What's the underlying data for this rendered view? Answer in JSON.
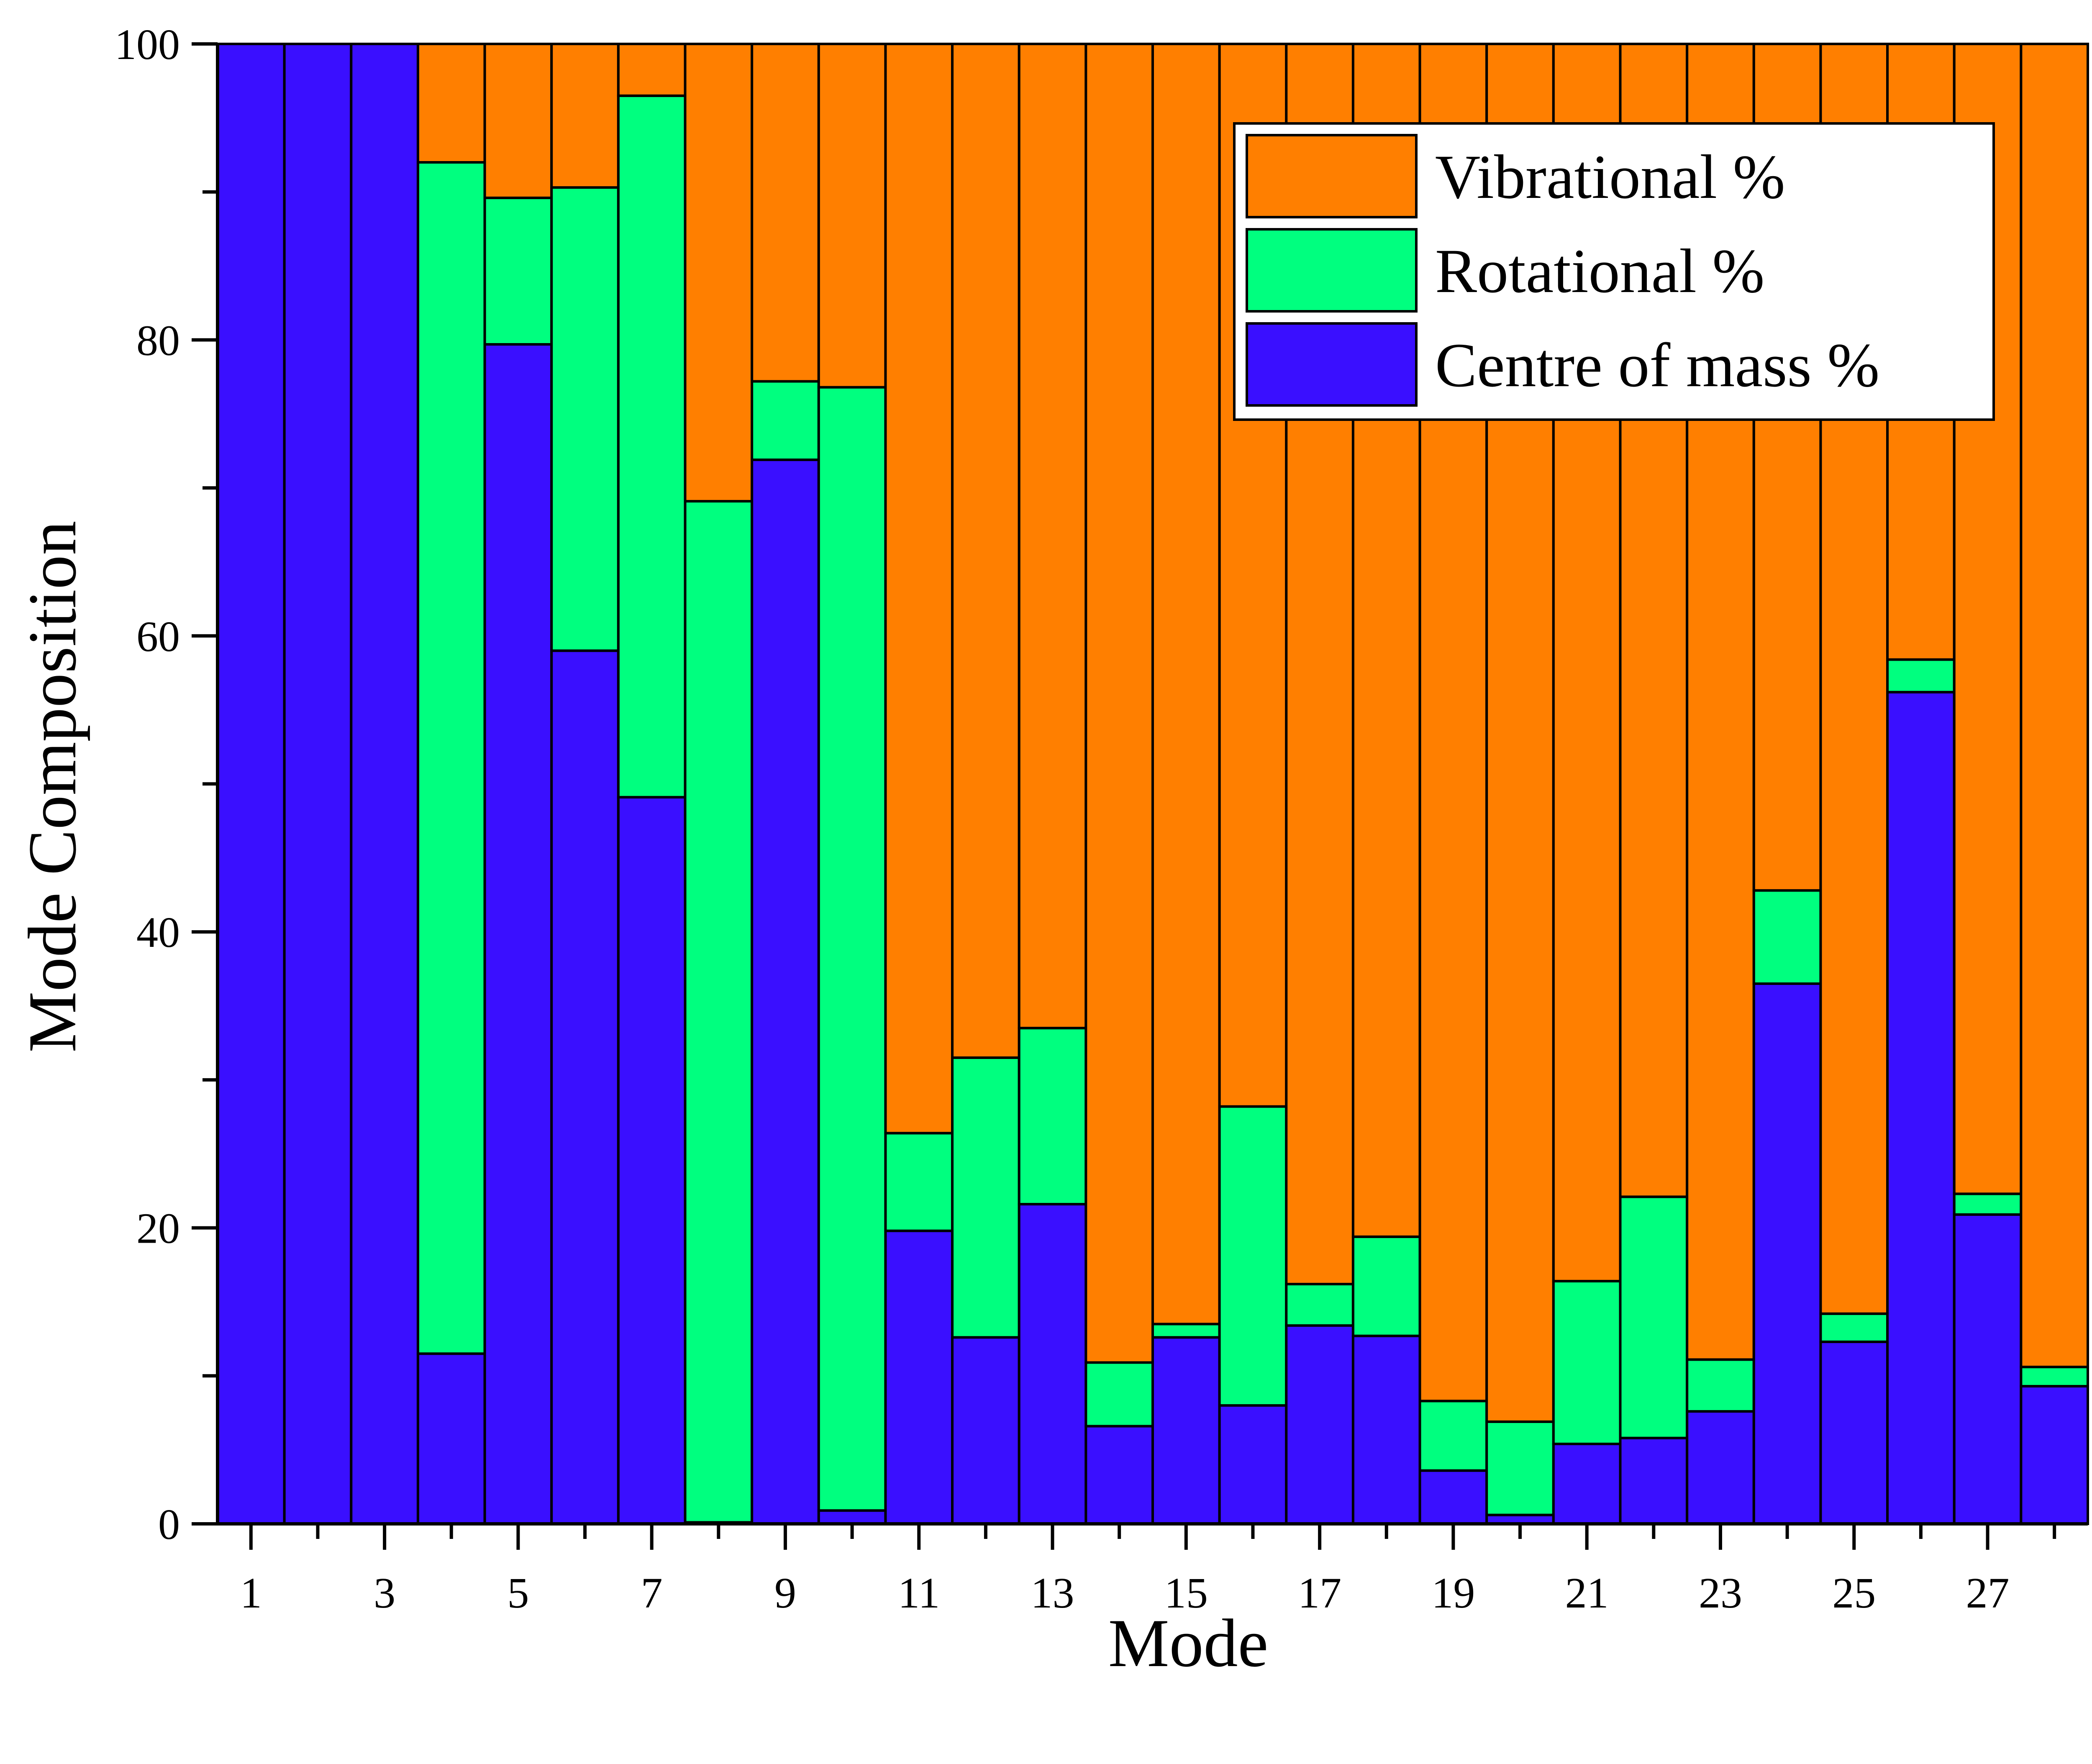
{
  "chart_data": {
    "type": "bar",
    "stacked": true,
    "xlabel": "Mode",
    "ylabel": "Mode Composition",
    "ylim": [
      0,
      100
    ],
    "y_ticks": [
      0,
      20,
      40,
      60,
      80,
      100
    ],
    "x_tick_labels": [
      "1",
      "3",
      "5",
      "7",
      "9",
      "11",
      "13",
      "15",
      "17",
      "19",
      "21",
      "23",
      "25",
      "27"
    ],
    "categories": [
      1,
      2,
      3,
      4,
      5,
      6,
      7,
      8,
      9,
      10,
      11,
      12,
      13,
      14,
      15,
      16,
      17,
      18,
      19,
      20,
      21,
      22,
      23,
      24,
      25,
      26,
      27,
      28
    ],
    "series": [
      {
        "name": "Centre of mass %",
        "color": "#3a0fff",
        "values": [
          100,
          100,
          100,
          11.5,
          79.7,
          59.0,
          49.1,
          0.1,
          71.9,
          0.9,
          19.8,
          12.6,
          21.6,
          6.6,
          12.6,
          8.0,
          13.4,
          12.7,
          3.6,
          0.6,
          5.4,
          5.8,
          7.6,
          36.5,
          12.3,
          56.2,
          20.9,
          9.3
        ]
      },
      {
        "name": "Rotational %",
        "color": "#00ff7f",
        "values": [
          0,
          0,
          0,
          80.5,
          9.9,
          31.3,
          47.4,
          69.0,
          5.3,
          75.9,
          6.6,
          18.9,
          11.9,
          4.3,
          0.9,
          20.2,
          2.8,
          6.7,
          4.7,
          6.3,
          11.0,
          16.3,
          3.5,
          6.3,
          1.9,
          2.2,
          1.4,
          1.3
        ]
      },
      {
        "name": "Vibrational %",
        "color": "#ff7f00",
        "values": [
          0,
          0,
          0,
          8.0,
          10.4,
          9.7,
          3.5,
          30.9,
          22.8,
          23.2,
          73.6,
          68.5,
          66.5,
          89.1,
          86.5,
          71.8,
          83.8,
          80.6,
          91.7,
          93.1,
          83.6,
          77.9,
          88.9,
          57.2,
          85.8,
          41.6,
          77.7,
          89.4
        ]
      }
    ],
    "legend": {
      "position": "top-right",
      "order": [
        "Vibrational %",
        "Rotational %",
        "Centre of mass %"
      ]
    },
    "grid": false
  }
}
